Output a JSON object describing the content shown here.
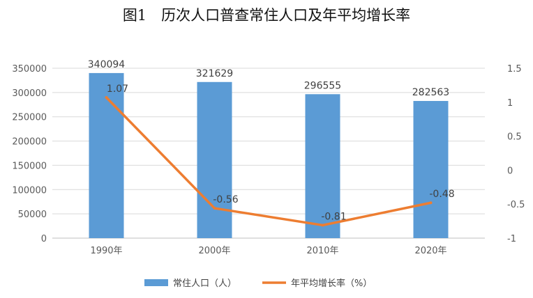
{
  "chart_data": {
    "type": "bar+line",
    "title": "图1　历次人口普查常住人口及年平均增长率",
    "categories": [
      "1990年",
      "2000年",
      "2010年",
      "2020年"
    ],
    "series": [
      {
        "name": "常住人口（人）",
        "type": "bar",
        "axis": "left",
        "values": [
          340094,
          321629,
          296555,
          282563
        ],
        "labels": [
          "340094",
          "321629",
          "296555",
          "282563"
        ],
        "color": "#5B9BD5"
      },
      {
        "name": "年平均增长率（%）",
        "type": "line",
        "axis": "right",
        "values": [
          1.07,
          -0.56,
          -0.81,
          -0.48
        ],
        "labels": [
          "1.07",
          "-0.56",
          "-0.81",
          "-0.48"
        ],
        "color": "#ED7D31"
      }
    ],
    "y_left": {
      "min": 0,
      "max": 350000,
      "ticks": [
        "0",
        "50000",
        "100000",
        "150000",
        "200000",
        "250000",
        "300000",
        "350000"
      ]
    },
    "y_right": {
      "min": -1,
      "max": 1.5,
      "ticks": [
        "-1",
        "-0.5",
        "0",
        "0.5",
        "1",
        "1.5"
      ]
    },
    "legend": "bottom"
  }
}
